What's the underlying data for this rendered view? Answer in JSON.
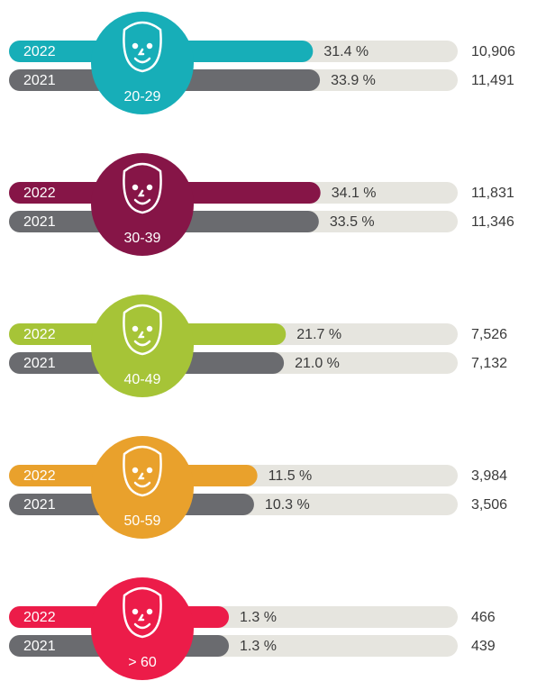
{
  "chart_data": {
    "type": "bar",
    "categories": [
      "20-29",
      "30-39",
      "40-49",
      "50-59",
      "> 60"
    ],
    "category_colors": [
      "#17aeb8",
      "#861547",
      "#a6c437",
      "#e9a12c",
      "#ec1c49"
    ],
    "track_color": "#e6e5df",
    "series": [
      {
        "name": "2022",
        "values": [
          31.4,
          34.1,
          21.7,
          11.5,
          1.3
        ],
        "value_labels": [
          "31.4 %",
          "34.1 %",
          "21.7 %",
          "11.5 %",
          "1.3 %"
        ],
        "counts": [
          10906,
          11831,
          7526,
          3984,
          466
        ],
        "count_labels": [
          "10,906",
          "11,831",
          "7,526",
          "3,984",
          "466"
        ]
      },
      {
        "name": "2021",
        "color": "#6a6b6f",
        "values": [
          33.9,
          33.5,
          21.0,
          10.3,
          1.3
        ],
        "value_labels": [
          "33.9 %",
          "33.5 %",
          "21.0 %",
          "10.3 %",
          "1.3 %"
        ],
        "counts": [
          11491,
          11346,
          7132,
          3506,
          439
        ],
        "count_labels": [
          "11,491",
          "11,346",
          "7,132",
          "3,506",
          "439"
        ]
      }
    ]
  }
}
